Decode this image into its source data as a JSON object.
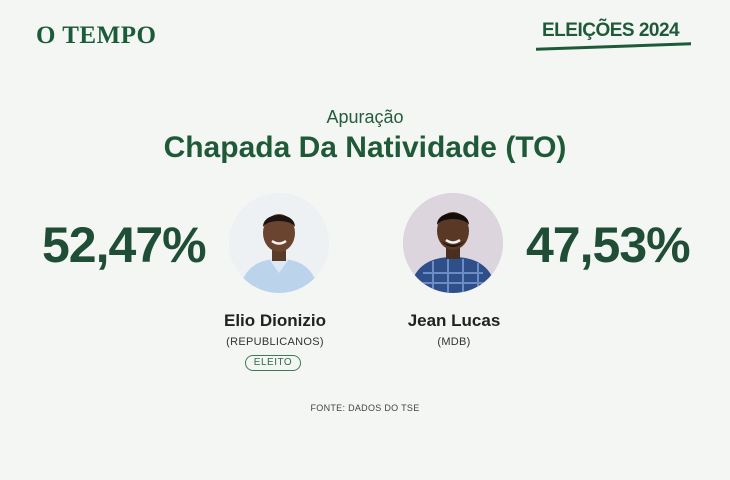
{
  "brand": {
    "logo": "O TEMPO",
    "badge": "ELEIÇÕES 2024"
  },
  "header": {
    "subtitle": "Apuração",
    "title": "Chapada Da Natividade (TO)"
  },
  "candidates": [
    {
      "name": "Elio Dionizio",
      "party": "(REPUBLICANOS)",
      "percent": "52,47%",
      "status": "ELEITO",
      "photo": "candidate-photo-elio"
    },
    {
      "name": "Jean Lucas",
      "party": "(MDB)",
      "percent": "47,53%",
      "photo": "candidate-photo-jean"
    }
  ],
  "footer": {
    "source": "FONTE: DADOS DO TSE"
  },
  "colors": {
    "primary": "#1f5a38",
    "background": "#f4f6f3"
  }
}
